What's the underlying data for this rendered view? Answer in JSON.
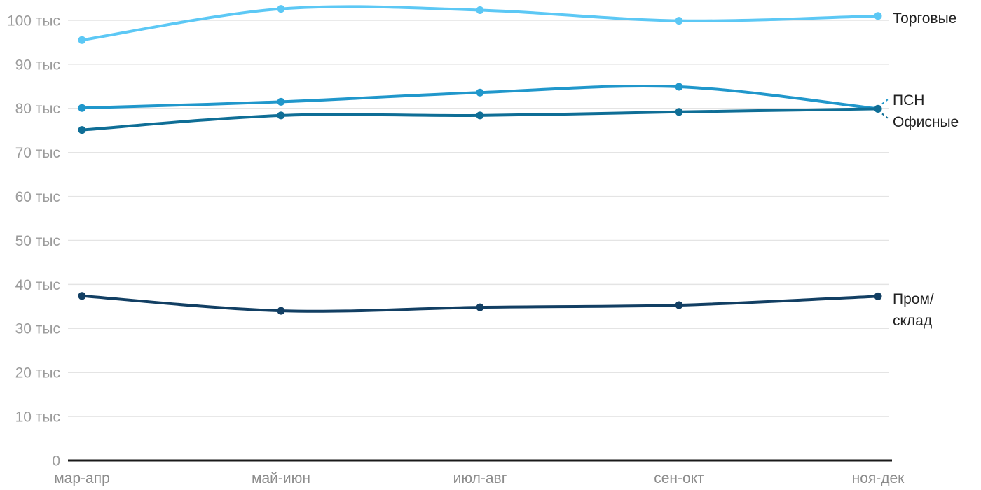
{
  "chart_data": {
    "type": "line",
    "title": "",
    "xlabel": "",
    "ylabel": "",
    "grid": "horizontal",
    "legend_position": "right-of-line-end",
    "categories": [
      "мар-апр",
      "май-июн",
      "июл-авг",
      "сен-окт",
      "ноя-дек"
    ],
    "y_axis": {
      "unit": "тыс",
      "tick_values": [
        0,
        10,
        20,
        30,
        40,
        50,
        60,
        70,
        80,
        90,
        100
      ],
      "tick_labels": [
        "0",
        "10 тыс",
        "20 тыс",
        "30 тыс",
        "40 тыс",
        "50 тыс",
        "60 тыс",
        "70 тыс",
        "80 тыс",
        "90 тыс",
        "100 тыс"
      ],
      "range": [
        0,
        104.5
      ]
    },
    "series": [
      {
        "key": "retail",
        "name": "Торговые",
        "label_lines": [
          "Торговые"
        ],
        "color": "#5CC8F5",
        "values": [
          95.5,
          102.6,
          102.3,
          99.9,
          101.0
        ]
      },
      {
        "key": "psn",
        "name": "ПСН",
        "label_lines": [
          "ПСН"
        ],
        "color": "#2097CB",
        "values": [
          80.1,
          81.5,
          83.6,
          84.9,
          79.9
        ]
      },
      {
        "key": "office",
        "name": "Офисные",
        "label_lines": [
          "Офисные"
        ],
        "color": "#0F6E96",
        "values": [
          75.1,
          78.4,
          78.4,
          79.2,
          79.9
        ]
      },
      {
        "key": "industrial",
        "name": "Пром/склад",
        "label_lines": [
          "Пром/",
          "склад"
        ],
        "color": "#123F63",
        "values": [
          37.4,
          34.0,
          34.8,
          35.3,
          37.3
        ]
      }
    ],
    "colors": {
      "background": "#FFFFFF",
      "grid": "#E4E4E4",
      "axis": "#1A1A1A",
      "y_tick_text": "#9B9B9B",
      "x_label_text": "#8C8C8C",
      "legend_text": "#212121"
    }
  }
}
